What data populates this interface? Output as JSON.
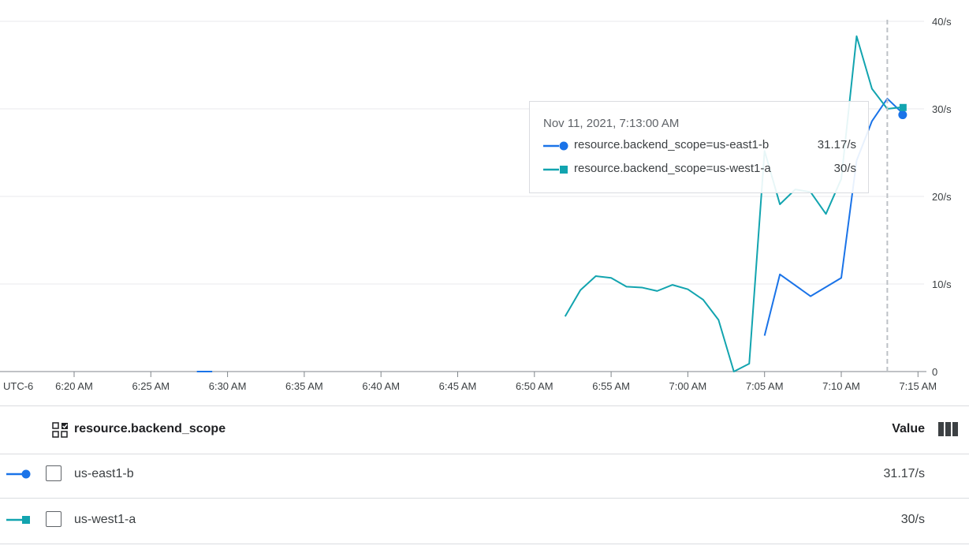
{
  "chart_data": {
    "type": "line",
    "x_tick_labels": [
      "UTC-6",
      "6:20 AM",
      "6:25 AM",
      "6:30 AM",
      "6:35 AM",
      "6:40 AM",
      "6:45 AM",
      "6:50 AM",
      "6:55 AM",
      "7:00 AM",
      "7:05 AM",
      "7:10 AM",
      "7:15 AM"
    ],
    "y_tick_labels": [
      "0",
      "10/s",
      "20/s",
      "30/s",
      "40/s"
    ],
    "ylim": [
      0,
      40
    ],
    "grid": true,
    "series": [
      {
        "name": "resource.backend_scope=us-east1-b",
        "color": "#1a73e8",
        "marker": "circle",
        "points": [
          [
            "6:28",
            0
          ],
          [
            "6:29",
            0
          ],
          [
            "7:05",
            4.1
          ],
          [
            "7:06",
            11.1
          ],
          [
            "7:08",
            8.6
          ],
          [
            "7:10",
            10.7
          ],
          [
            "7:11",
            24.1
          ],
          [
            "7:12",
            28.6
          ],
          [
            "7:13",
            31.17
          ],
          [
            "7:14",
            29.5
          ]
        ]
      },
      {
        "name": "resource.backend_scope=us-west1-a",
        "color": "#12a4af",
        "marker": "square",
        "points": [
          [
            "6:52",
            6.3
          ],
          [
            "6:53",
            9.3
          ],
          [
            "6:54",
            10.9
          ],
          [
            "6:55",
            10.7
          ],
          [
            "6:56",
            9.7
          ],
          [
            "6:57",
            9.6
          ],
          [
            "6:58",
            9.2
          ],
          [
            "6:59",
            9.9
          ],
          [
            "7:00",
            9.4
          ],
          [
            "7:01",
            8.2
          ],
          [
            "7:02",
            5.9
          ],
          [
            "7:03",
            0
          ],
          [
            "7:04",
            0.9
          ],
          [
            "7:05",
            25.2
          ],
          [
            "7:06",
            19.1
          ],
          [
            "7:07",
            20.8
          ],
          [
            "7:08",
            20.5
          ],
          [
            "7:09",
            18.0
          ],
          [
            "7:10",
            22.0
          ],
          [
            "7:11",
            38.3
          ],
          [
            "7:12",
            32.3
          ],
          [
            "7:13",
            30
          ],
          [
            "7:14",
            30.2
          ]
        ]
      }
    ],
    "cursor_time": "7:13",
    "tooltip": {
      "title": "Nov 11, 2021, 7:13:00 AM",
      "rows": [
        {
          "label": "resource.backend_scope=us-east1-b",
          "value": "31.17/s"
        },
        {
          "label": "resource.backend_scope=us-west1-a",
          "value": "30/s"
        }
      ]
    }
  },
  "table": {
    "column_label": "resource.backend_scope",
    "value_label": "Value",
    "rows": [
      {
        "name": "us-east1-b",
        "value": "31.17/s"
      },
      {
        "name": "us-west1-a",
        "value": "30/s"
      }
    ]
  }
}
